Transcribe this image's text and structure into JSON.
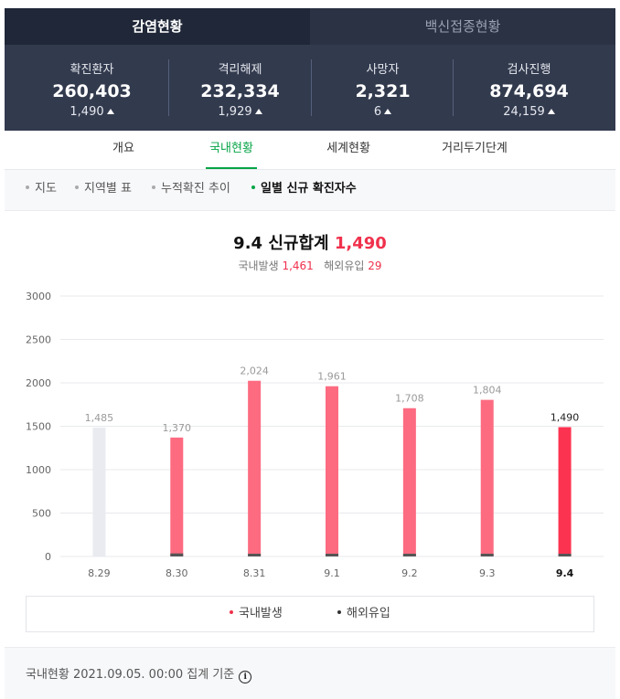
{
  "tabs": [
    {
      "label": "감염현황",
      "active": true
    },
    {
      "label": "백신접종현황",
      "active": false
    }
  ],
  "stats": [
    {
      "label": "확진환자",
      "value": "260,403",
      "delta": "1,490"
    },
    {
      "label": "격리해제",
      "value": "232,334",
      "delta": "1,929"
    },
    {
      "label": "사망자",
      "value": "2,321",
      "delta": "6"
    },
    {
      "label": "검사진행",
      "value": "874,694",
      "delta": "24,159"
    }
  ],
  "subnav": [
    "개요",
    "국내현황",
    "세계현황",
    "거리두기단계"
  ],
  "subnav_active": 1,
  "filters": [
    "지도",
    "지역별 표",
    "누적확진 추이",
    "일별 신규 확진자수"
  ],
  "filters_active": 3,
  "summary": {
    "date": "9.4",
    "label": "신규합계",
    "total": "1,490",
    "domestic_label": "국내발생",
    "domestic_value": "1,461",
    "overseas_label": "해외유입",
    "overseas_value": "29"
  },
  "chart_data": {
    "type": "bar",
    "categories": [
      "8.29",
      "8.30",
      "8.31",
      "9.1",
      "9.2",
      "9.3",
      "9.4"
    ],
    "totals": [
      1485,
      1370,
      2024,
      1961,
      1708,
      1804,
      1490
    ],
    "total_labels": [
      "1,485",
      "1,370",
      "2,024",
      "1,961",
      "1,708",
      "1,804",
      "1,490"
    ],
    "series": [
      {
        "name": "국내발생",
        "values": [
          1485,
          1335,
          1998,
          1934,
          1683,
          1780,
          1461
        ]
      },
      {
        "name": "해외유입",
        "values": [
          0,
          35,
          26,
          27,
          25,
          24,
          29
        ]
      }
    ],
    "yticks": [
      0,
      500,
      1000,
      1500,
      2000,
      2500,
      3000
    ],
    "ylim": [
      0,
      3000
    ],
    "highlight_index": 6,
    "dimmed_index": 0
  },
  "colors": {
    "domestic": "#fd6b81",
    "domestic_highlight": "#fc3350",
    "dimmed": "#e9ebf0",
    "overseas": "#555555"
  },
  "legend": [
    {
      "label": "국내발생",
      "color": "#f0314c"
    },
    {
      "label": "해외유입",
      "color": "#333333"
    }
  ],
  "footer": {
    "text": "국내현황 2021.09.05. 00:00 집계 기준",
    "info_icon": "info-icon"
  }
}
